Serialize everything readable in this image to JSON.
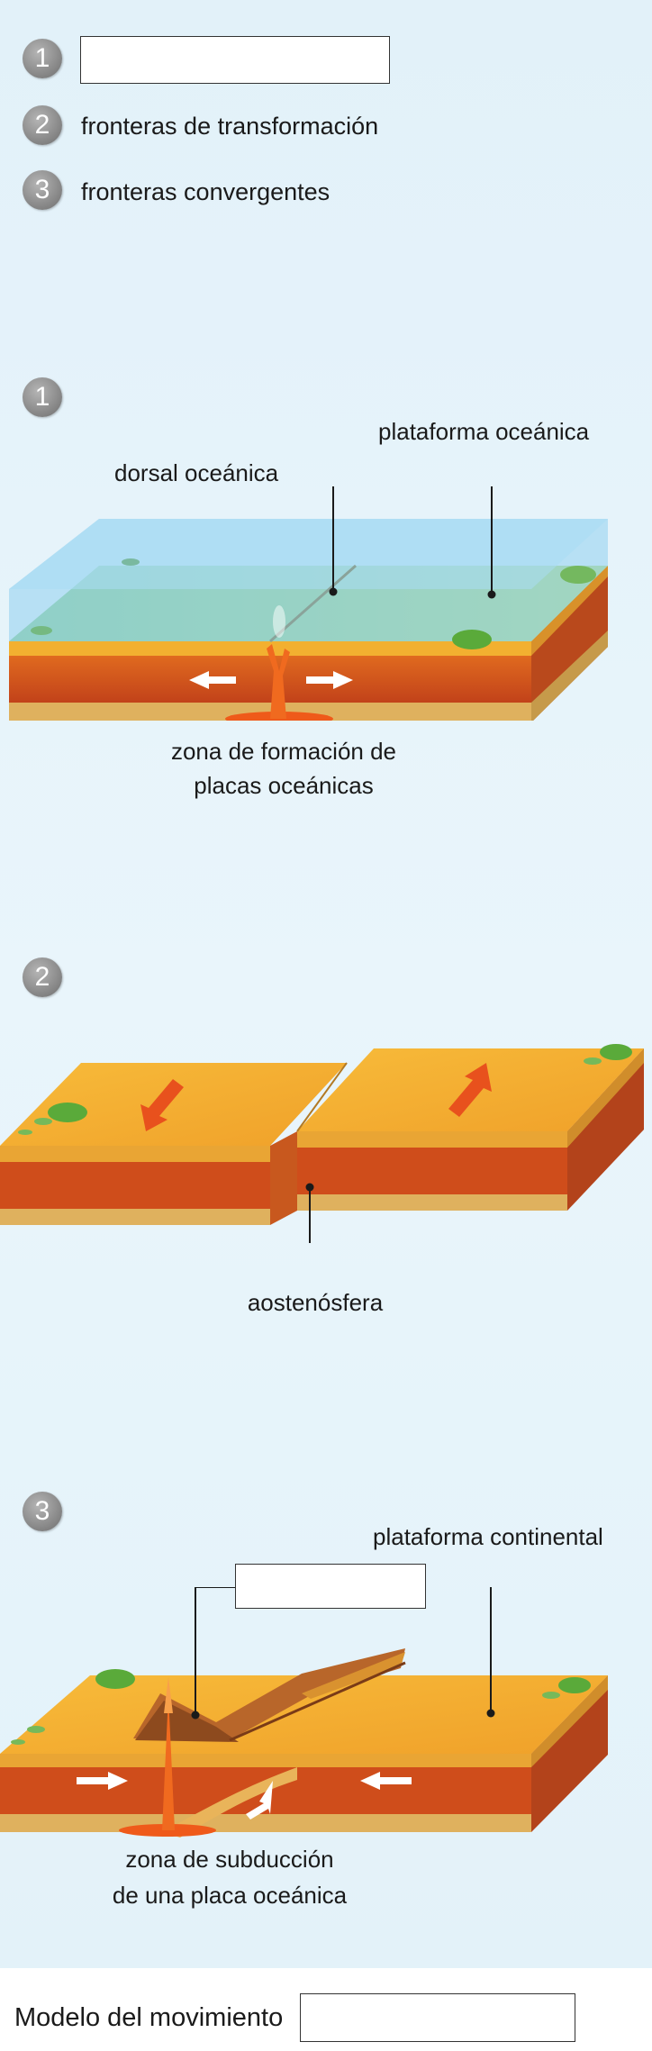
{
  "legend": {
    "items": [
      {
        "number": "1",
        "text": ""
      },
      {
        "number": "2",
        "text": "fronteras de transformación"
      },
      {
        "number": "3",
        "text": "fronteras convergentes"
      }
    ]
  },
  "diagram1": {
    "number": "1",
    "label_platform": "plataforma oceánica",
    "label_ridge": "dorsal oceánica",
    "caption_line1": "zona de formación de",
    "caption_line2": "placas oceánicas"
  },
  "diagram2": {
    "number": "2",
    "label_asthenosphere": "aostenósfera"
  },
  "diagram3": {
    "number": "3",
    "label_platform": "plataforma continental",
    "blank_box": "",
    "caption_line1": "zona de subducción",
    "caption_line2": "de una placa oceánica"
  },
  "footer": {
    "label": "Modelo del movimiento",
    "answer": ""
  },
  "colors": {
    "water": "#8fd0ef",
    "crust": "#f3a72a",
    "mantle": "#d7541c",
    "base": "#e0b25c",
    "vegetation": "#5aaa3a",
    "arrow_red": "#e8511d"
  }
}
